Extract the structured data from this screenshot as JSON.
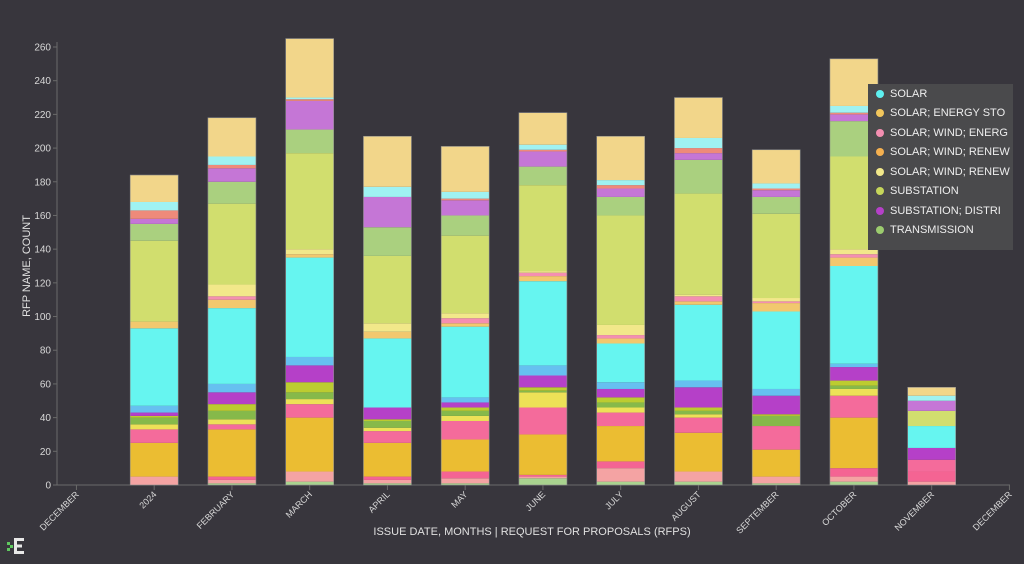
{
  "chart_data": {
    "type": "bar",
    "stacked": true,
    "title": "",
    "xlabel": "ISSUE DATE, MONTHS | REQUEST FOR PROPOSALS (RFPS)",
    "ylabel": "RFP NAME, COUNT",
    "ylim": [
      0,
      260
    ],
    "yticks": [
      0,
      20,
      40,
      60,
      80,
      100,
      120,
      140,
      160,
      180,
      200,
      220,
      240,
      260
    ],
    "grid": false,
    "legend_position": "right",
    "x_tick_labels": [
      "DECEMBER",
      "2024",
      "FEBRUARY",
      "MARCH",
      "APRIL",
      "MAY",
      "JUNE",
      "JULY",
      "AUGUST",
      "SEPTEMBER",
      "OCTOBER",
      "NOVEMBER",
      "DECEMBER"
    ],
    "categories": [
      "2024",
      "FEBRUARY",
      "MARCH",
      "APRIL",
      "MAY",
      "JUNE",
      "JULY",
      "AUGUST",
      "SEPTEMBER",
      "OCTOBER",
      "NOVEMBER"
    ],
    "category_tick_index": [
      1,
      2,
      3,
      4,
      5,
      6,
      7,
      8,
      9,
      10,
      11
    ],
    "totals": [
      184,
      218,
      265,
      207,
      201,
      221,
      207,
      230,
      199,
      253,
      58
    ],
    "series_colors": [
      "#a9d38f",
      "#f4a3a3",
      "#f46493",
      "#ebbd32",
      "#f46b9b",
      "#ede157",
      "#86b94a",
      "#bccc30",
      "#b540c8",
      "#66c0f0",
      "#66f5f0",
      "#f2c86e",
      "#f48fb1",
      "#f2e88a",
      "#d1de6e",
      "#aad07f",
      "#c576d6",
      "#ee8a7a",
      "#9ff2f2",
      "#f2d68a"
    ],
    "stack_values": [
      [
        0,
        5,
        0,
        20,
        8,
        3,
        4,
        1,
        2,
        4,
        46,
        4,
        0,
        0,
        48,
        10,
        3,
        5,
        5,
        16
      ],
      [
        1,
        2,
        2,
        28,
        3,
        3,
        5,
        4,
        7,
        5,
        45,
        5,
        2,
        7,
        48,
        13,
        8,
        2,
        5,
        23
      ],
      [
        2,
        6,
        0,
        32,
        8,
        3,
        4,
        6,
        10,
        5,
        59,
        2,
        0,
        3,
        57,
        14,
        17,
        1,
        1,
        35
      ],
      [
        1,
        2,
        2,
        20,
        7,
        2,
        4,
        1,
        7,
        0,
        41,
        4,
        0,
        5,
        40,
        17,
        18,
        0,
        6,
        30
      ],
      [
        1,
        3,
        4,
        19,
        11,
        3,
        3,
        2,
        3,
        3,
        42,
        2,
        3,
        3,
        46,
        12,
        9,
        1,
        4,
        27
      ],
      [
        4,
        1,
        1,
        24,
        16,
        9,
        1,
        2,
        7,
        6,
        50,
        3,
        2,
        1,
        51,
        11,
        9,
        1,
        3,
        19
      ],
      [
        2,
        8,
        4,
        21,
        8,
        3,
        3,
        3,
        5,
        4,
        23,
        3,
        2,
        6,
        65,
        11,
        5,
        2,
        3,
        26
      ],
      [
        2,
        6,
        0,
        23,
        9,
        2,
        2,
        2,
        12,
        4,
        45,
        2,
        3,
        1,
        60,
        20,
        4,
        3,
        6,
        24
      ],
      [
        1,
        4,
        0,
        16,
        14,
        0,
        6,
        1,
        11,
        4,
        46,
        5,
        1,
        2,
        50,
        10,
        4,
        1,
        3,
        20
      ],
      [
        2,
        3,
        5,
        30,
        13,
        4,
        2,
        3,
        8,
        2,
        58,
        5,
        2,
        3,
        55,
        21,
        4,
        1,
        4,
        28
      ],
      [
        0,
        2,
        6,
        0,
        7,
        0,
        0,
        0,
        7,
        0,
        13,
        0,
        0,
        0,
        9,
        0,
        6,
        0,
        3,
        5
      ]
    ]
  },
  "legend": [
    {
      "label": "SOLAR",
      "color": "#5ef0f0"
    },
    {
      "label": "SOLAR; ENERGY STO",
      "color": "#f2c75c"
    },
    {
      "label": "SOLAR; WIND; ENERG",
      "color": "#f48fb1"
    },
    {
      "label": "SOLAR; WIND; RENEW",
      "color": "#f5b04f"
    },
    {
      "label": "SOLAR; WIND; RENEW",
      "color": "#f2e88a"
    },
    {
      "label": "SUBSTATION",
      "color": "#c6d65a"
    },
    {
      "label": "SUBSTATION; DISTRI",
      "color": "#b540c8"
    },
    {
      "label": "TRANSMISSION",
      "color": "#9ccc6e"
    }
  ]
}
